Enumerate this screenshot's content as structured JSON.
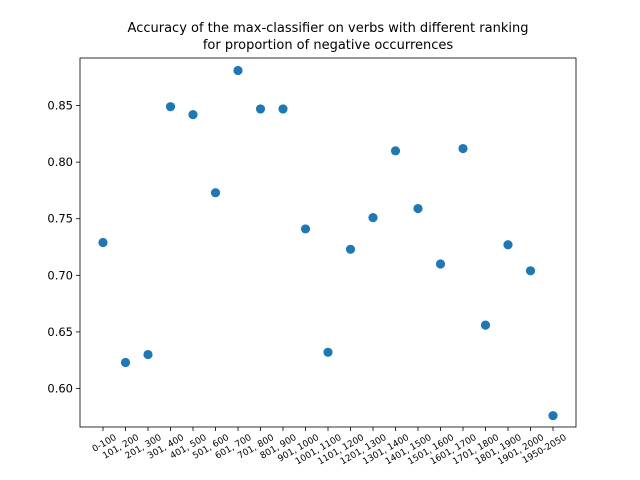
{
  "chart_data": {
    "type": "scatter",
    "title": "Accuracy of the max-classifier on verbs with different ranking",
    "subtitle": "for proportion of negative occurrences",
    "xlabel": "",
    "ylabel": "",
    "categories": [
      "0-100",
      "101, 200",
      "201, 300",
      "301, 400",
      "401, 500",
      "501, 600",
      "601, 700",
      "701, 800",
      "801, 900",
      "901, 1000",
      "1001, 1100",
      "1101, 1200",
      "1201, 1300",
      "1301, 1400",
      "1401, 1500",
      "1501, 1600",
      "1601, 1700",
      "1701, 1800",
      "1801, 1900",
      "1901, 2000",
      "1950-2050"
    ],
    "values": [
      0.729,
      0.623,
      0.63,
      0.849,
      0.842,
      0.773,
      0.881,
      0.847,
      0.847,
      0.741,
      0.632,
      0.723,
      0.751,
      0.81,
      0.759,
      0.71,
      0.812,
      0.656,
      0.727,
      0.704,
      0.576
    ],
    "yticks": [
      "0.60",
      "0.65",
      "0.70",
      "0.75",
      "0.80",
      "0.85"
    ],
    "ylim": [
      0.566,
      0.892
    ],
    "grid": false,
    "legend": "none",
    "color": "#1f77b4"
  }
}
